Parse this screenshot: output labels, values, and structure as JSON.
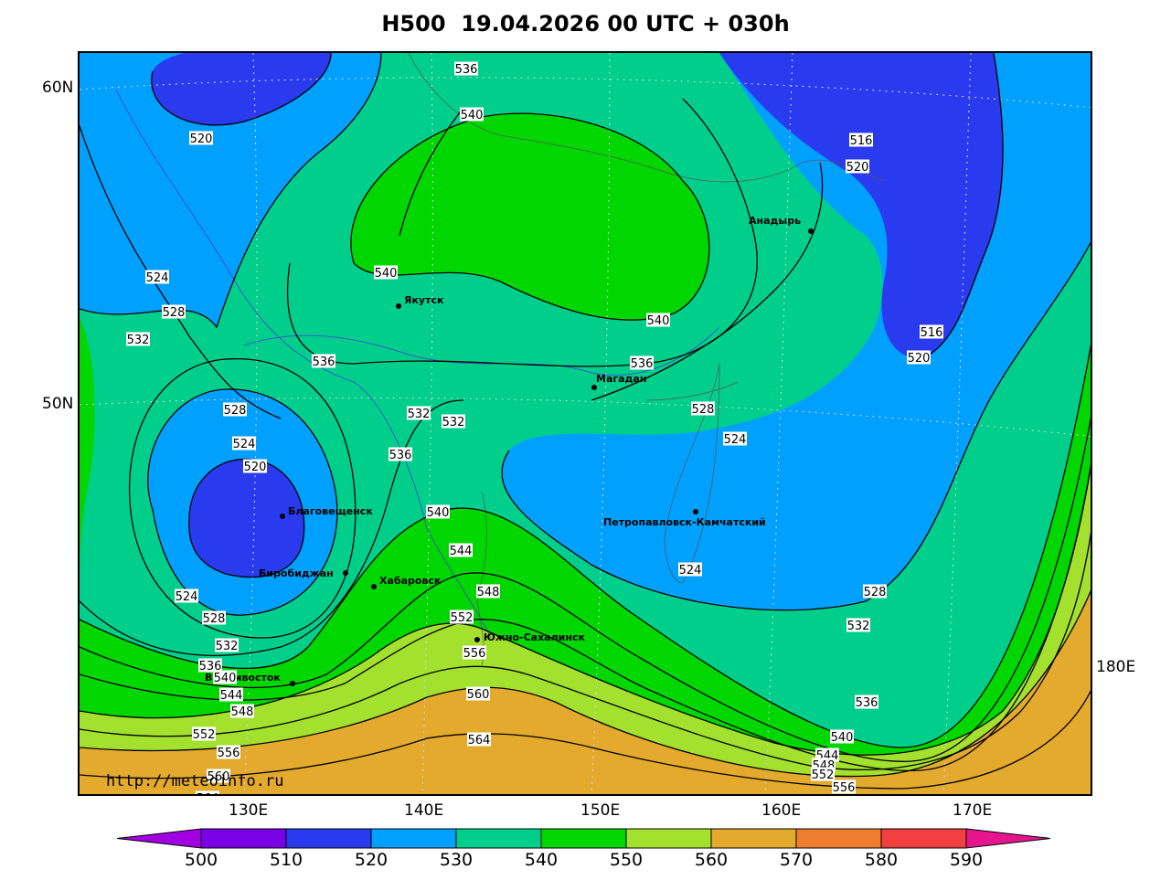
{
  "title": "H500  19.04.2026 00 UTC + 030h",
  "watermark": "http://meteoinfo.ru",
  "lat_labels": [
    "60N",
    "50N"
  ],
  "lon_labels": [
    "130E",
    "140E",
    "150E",
    "160E",
    "170E",
    "180E"
  ],
  "colorbar": {
    "ticks": [
      "500",
      "510",
      "520",
      "530",
      "540",
      "550",
      "560",
      "570",
      "580",
      "590"
    ],
    "colors": [
      "#a100e0",
      "#7a00e6",
      "#2a3bef",
      "#00a0ff",
      "#00cf8c",
      "#00d600",
      "#a3e12e",
      "#e3aa2e",
      "#ef7d2e",
      "#f23f3f",
      "#e5158d"
    ]
  },
  "fill_colors": {
    "c510_520": "#2a3bef",
    "c520_530": "#00a0ff",
    "c530_540": "#00cf8c",
    "c540_550": "#00d600",
    "c550_560": "#a3e12e",
    "c560_570": "#e3aa2e"
  },
  "cities": [
    "Якутск",
    "Магадан",
    "Анадырь",
    "Благовещенск",
    "Биробиджан",
    "Хабаровск",
    "Южно-Сахалинск",
    "Петропавловск-Камчатский",
    "Владивосток"
  ],
  "contour_labels": [
    "536",
    "540",
    "520",
    "516",
    "520",
    "524",
    "528",
    "532",
    "540",
    "540",
    "536",
    "536",
    "516",
    "520",
    "528",
    "524",
    "532",
    "532",
    "536",
    "528",
    "524",
    "520",
    "540",
    "544",
    "548",
    "552",
    "556",
    "560",
    "564",
    "524",
    "528",
    "532",
    "536",
    "540",
    "544",
    "548",
    "552",
    "556",
    "560",
    "564",
    "524",
    "528",
    "532",
    "536",
    "540",
    "544",
    "548",
    "552",
    "556"
  ]
}
